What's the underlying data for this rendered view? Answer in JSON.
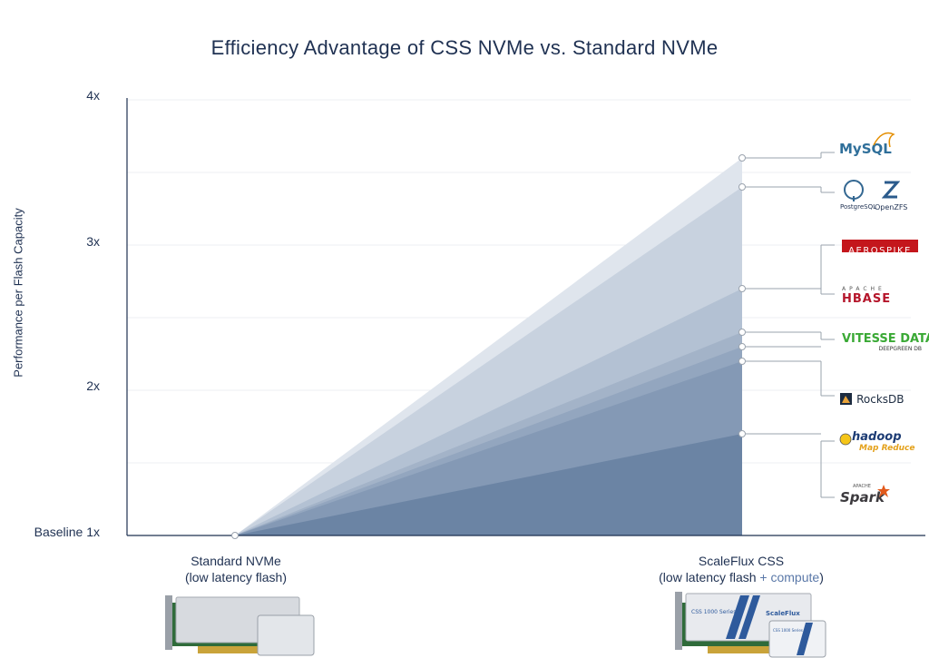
{
  "chart_data": {
    "type": "area",
    "title": "Efficiency Advantage of CSS NVMe vs. Standard NVMe",
    "ylabel": "Performance per Flash Capacity",
    "ylim": [
      1,
      4
    ],
    "y_ticks": [
      {
        "value": 1,
        "label": "Baseline 1x"
      },
      {
        "value": 2,
        "label": "2x"
      },
      {
        "value": 3,
        "label": "3x"
      },
      {
        "value": 4,
        "label": "4x"
      }
    ],
    "categories": [
      "Standard NVMe",
      "ScaleFlux CSS"
    ],
    "category_sublabels": [
      {
        "main": "Standard NVMe",
        "sub_pre": "(low latency flash)",
        "sub_plus": "",
        "sub_post": ""
      },
      {
        "main": "ScaleFlux CSS",
        "sub_pre": "(low latency flash ",
        "sub_plus": "+ compute",
        "sub_post": ")"
      }
    ],
    "series": [
      {
        "name": "MySQL",
        "values": [
          1,
          3.6
        ]
      },
      {
        "name": "PostgreSQL / OpenZFS",
        "values": [
          1,
          3.4
        ]
      },
      {
        "name": "Aerospike",
        "values": [
          1,
          2.7
        ]
      },
      {
        "name": "Apache HBase",
        "values": [
          1,
          2.4
        ]
      },
      {
        "name": "Vitesse Data Deepgreen DB",
        "values": [
          1,
          2.3
        ]
      },
      {
        "name": "RocksDB",
        "values": [
          1,
          2.2
        ]
      },
      {
        "name": "Hadoop MapReduce",
        "values": [
          1,
          1.7
        ]
      }
    ],
    "grid": true,
    "legend_placement": "right",
    "colors": [
      "#dfe5ed",
      "#c8d2df",
      "#b3c1d3",
      "#a3b3c8",
      "#93a6bf",
      "#8499b5",
      "#6b84a4"
    ]
  },
  "logos": {
    "mysql": "MySQL",
    "postgres": "PostgreSQL",
    "openzfs": "OpenZFS",
    "aerospike": "AEROSPIKE",
    "apache_small": "APACHE",
    "hbase": "HBASE",
    "vitesse": "VITESSE DATA",
    "deepgreen": "DEEPGREEN DB",
    "rocksdb": "RocksDB",
    "hadoop": "hadoop",
    "mapreduce": "Map Reduce",
    "apache_spark_small": "APACHE",
    "spark": "Spark"
  },
  "products": {
    "css_card_series": "CSS 1000 Series",
    "css_card_brand": "ScaleFlux",
    "css_drive_series": "CSS 1000 Series"
  }
}
